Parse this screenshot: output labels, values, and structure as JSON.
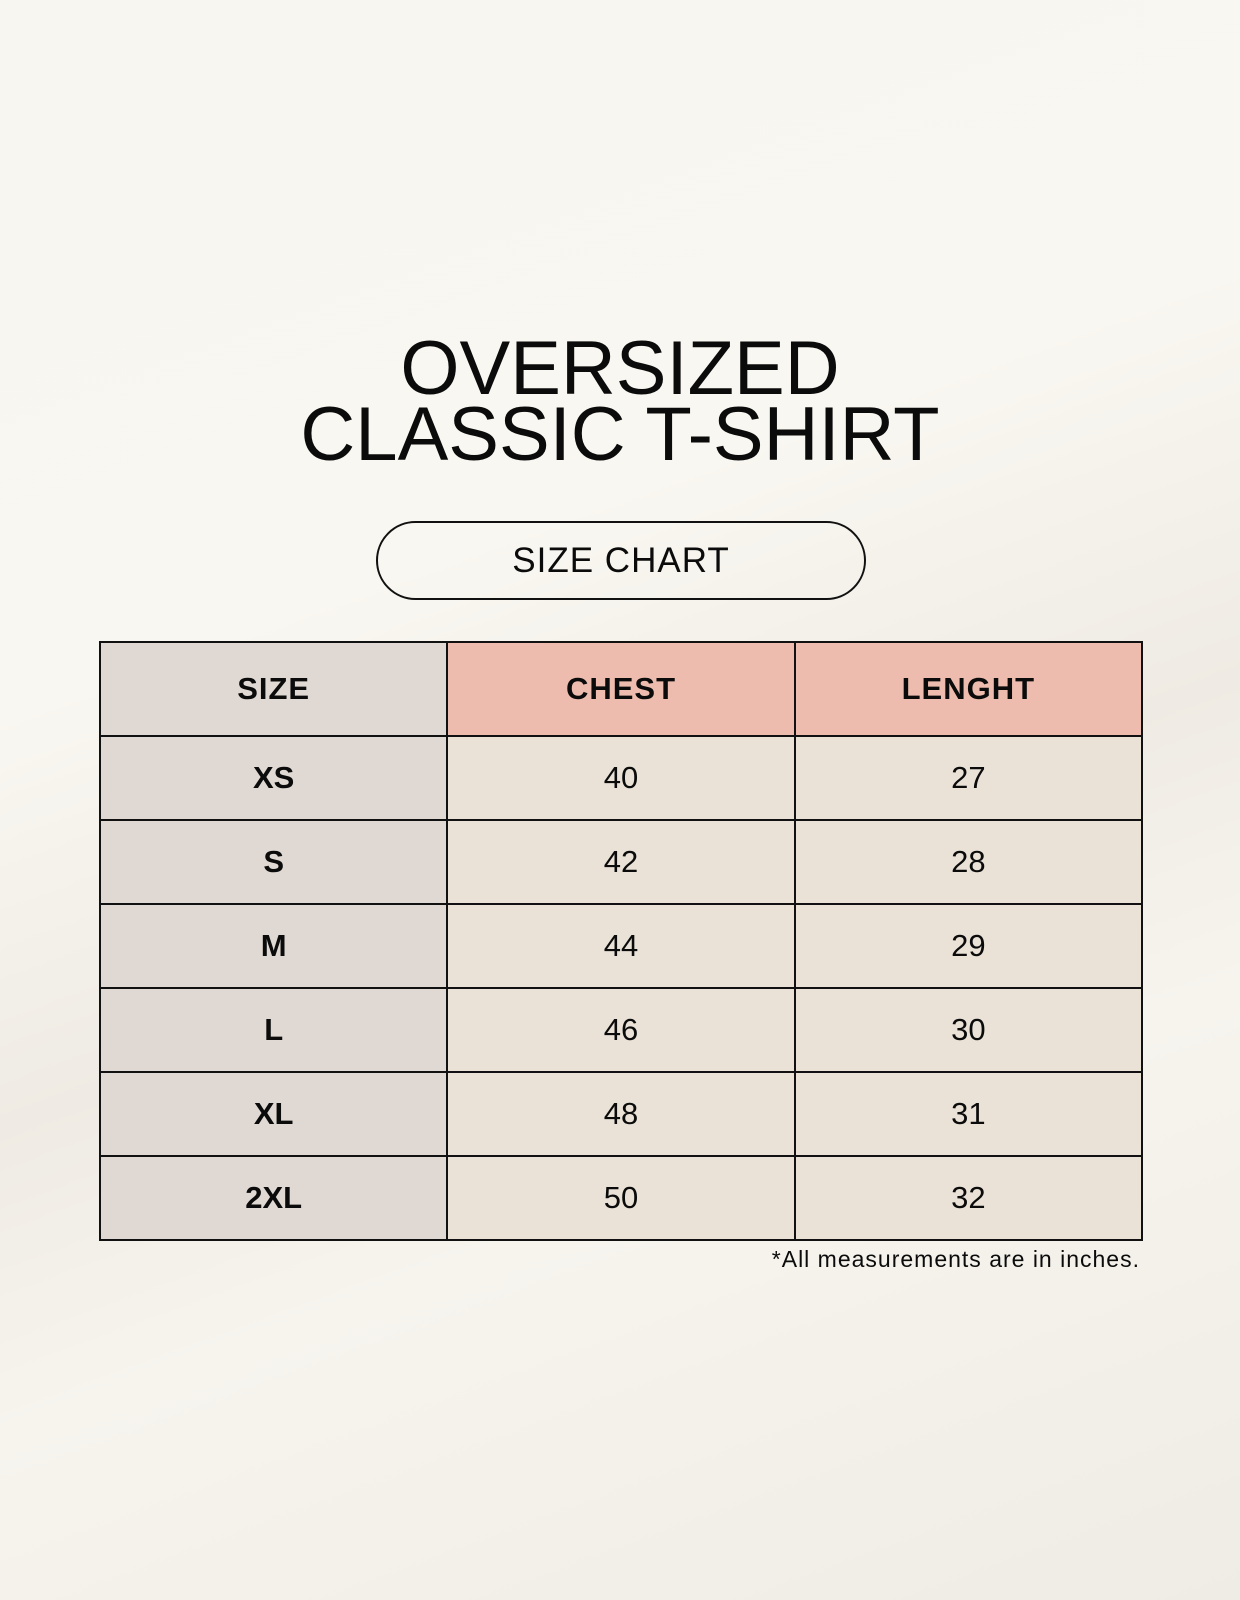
{
  "title": {
    "line1": "OVERSIZED",
    "line2": "CLASSIC T-SHIRT"
  },
  "badge": "SIZE CHART",
  "table": {
    "headers": [
      "SIZE",
      "CHEST",
      "LENGHT"
    ],
    "rows": [
      [
        "XS",
        "40",
        "27"
      ],
      [
        "S",
        "42",
        "28"
      ],
      [
        "M",
        "44",
        "29"
      ],
      [
        "L",
        "46",
        "30"
      ],
      [
        "XL",
        "48",
        "31"
      ],
      [
        "2XL",
        "50",
        "32"
      ]
    ]
  },
  "footnote": "*All measurements are in inches.",
  "colors": {
    "header_accent": "#edbcae",
    "size_column": "#e0d8d2",
    "cells": "#eae2d7"
  }
}
